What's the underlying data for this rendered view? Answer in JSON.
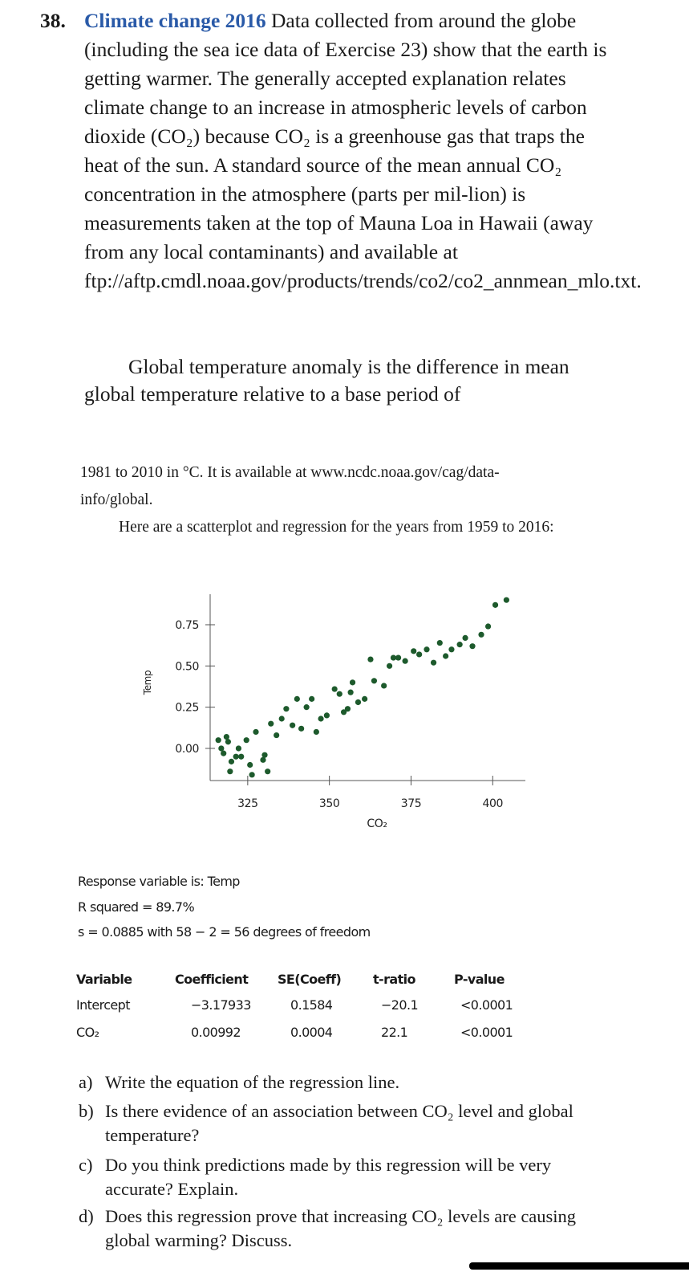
{
  "problem": {
    "number": "38.",
    "title": "Climate change 2016",
    "intro": "Data collected from around the globe (including the sea ice data of Exercise 23) show that the earth is getting warmer. The generally accepted explanation relates climate change to an increase in atmospheric levels of carbon dioxide (CO₂) because CO₂ is a greenhouse gas that traps the heat of the sun. A standard source of the mean annual CO₂ concentration in the atmosphere (parts per mil-lion) is measurements taken at the top of Mauna Loa in Hawaii (away from any local contaminants) and available at ftp://aftp.cmdl.noaa.gov/products/trends/co2/co2_annmean_mlo.txt.",
    "paragraph_2": "Global temperature anomaly is the difference in mean global temperature relative to a base period of",
    "paragraph_3": "1981 to 2010 in °C. It is available at www.ncdc.noaa.gov/cag/data-info/global.",
    "paragraph_4": "Here are a scatterplot and regression for the years from 1959 to 2016:"
  },
  "chart_data": {
    "type": "scatter",
    "x_label": "CO₂",
    "y_label": "Temp",
    "color": "#1d5a2c",
    "xlim": [
      313.5,
      410
    ],
    "ylim": [
      -0.195,
      0.935
    ],
    "xticks": [
      325,
      350,
      375,
      400
    ],
    "yticks": [
      {
        "value": 0,
        "label": "0.00"
      },
      {
        "value": 0.25,
        "label": "0.25"
      },
      {
        "value": 0.5,
        "label": "0.50"
      },
      {
        "value": 0.75,
        "label": "0.75"
      }
    ],
    "x": [
      316.0,
      316.9,
      317.6,
      318.5,
      319.0,
      319.6,
      320.0,
      321.4,
      322.2,
      323.0,
      324.6,
      325.7,
      326.3,
      327.5,
      329.7,
      330.2,
      331.1,
      332.1,
      333.8,
      335.4,
      336.8,
      338.7,
      340.1,
      341.4,
      343.0,
      344.6,
      346.0,
      347.4,
      349.2,
      351.6,
      353.1,
      354.4,
      355.6,
      356.5,
      357.1,
      358.8,
      360.8,
      362.6,
      363.7,
      366.7,
      368.4,
      369.6,
      371.1,
      373.2,
      375.8,
      377.5,
      379.8,
      381.9,
      383.8,
      385.6,
      387.4,
      389.9,
      391.6,
      393.8,
      396.5,
      398.6,
      400.8,
      404.2
    ],
    "values": [
      0.05,
      0.0,
      -0.03,
      0.07,
      0.04,
      -0.14,
      -0.08,
      -0.05,
      0.0,
      -0.05,
      0.05,
      -0.1,
      -0.16,
      0.1,
      -0.07,
      -0.04,
      -0.14,
      0.15,
      0.08,
      0.18,
      0.24,
      0.14,
      0.3,
      0.12,
      0.25,
      0.3,
      0.1,
      0.18,
      0.2,
      0.36,
      0.33,
      0.22,
      0.24,
      0.34,
      0.4,
      0.28,
      0.3,
      0.54,
      0.41,
      0.38,
      0.5,
      0.55,
      0.55,
      0.53,
      0.59,
      0.57,
      0.6,
      0.52,
      0.64,
      0.56,
      0.6,
      0.63,
      0.67,
      0.62,
      0.69,
      0.74,
      0.87,
      0.9
    ]
  },
  "regression": {
    "lines": [
      "Response variable is: Temp",
      "R squared = 89.7%",
      "s = 0.0885 with 58 − 2 = 56 degrees of freedom"
    ],
    "table": {
      "header": [
        "Variable",
        "Coefficient",
        "SE(Coeff)",
        "t-ratio",
        "P-value"
      ],
      "rows": [
        [
          "Intercept",
          "−3.17933",
          "0.1584",
          "−20.1",
          "<0.0001"
        ],
        [
          "CO₂",
          "0.00992",
          "0.0004",
          "22.1",
          "<0.0001"
        ]
      ]
    }
  },
  "questions": [
    {
      "label": "a)",
      "text": "Write the equation of the regression line."
    },
    {
      "label": "b)",
      "text": "Is there evidence of an association between CO₂ level and global temperature?"
    },
    {
      "label": "c)",
      "text": "Do you think predictions made by this regression will be very accurate? Explain."
    },
    {
      "label": "d)",
      "text": "Does this regression prove that increasing CO₂ levels are causing global warming? Discuss."
    }
  ]
}
